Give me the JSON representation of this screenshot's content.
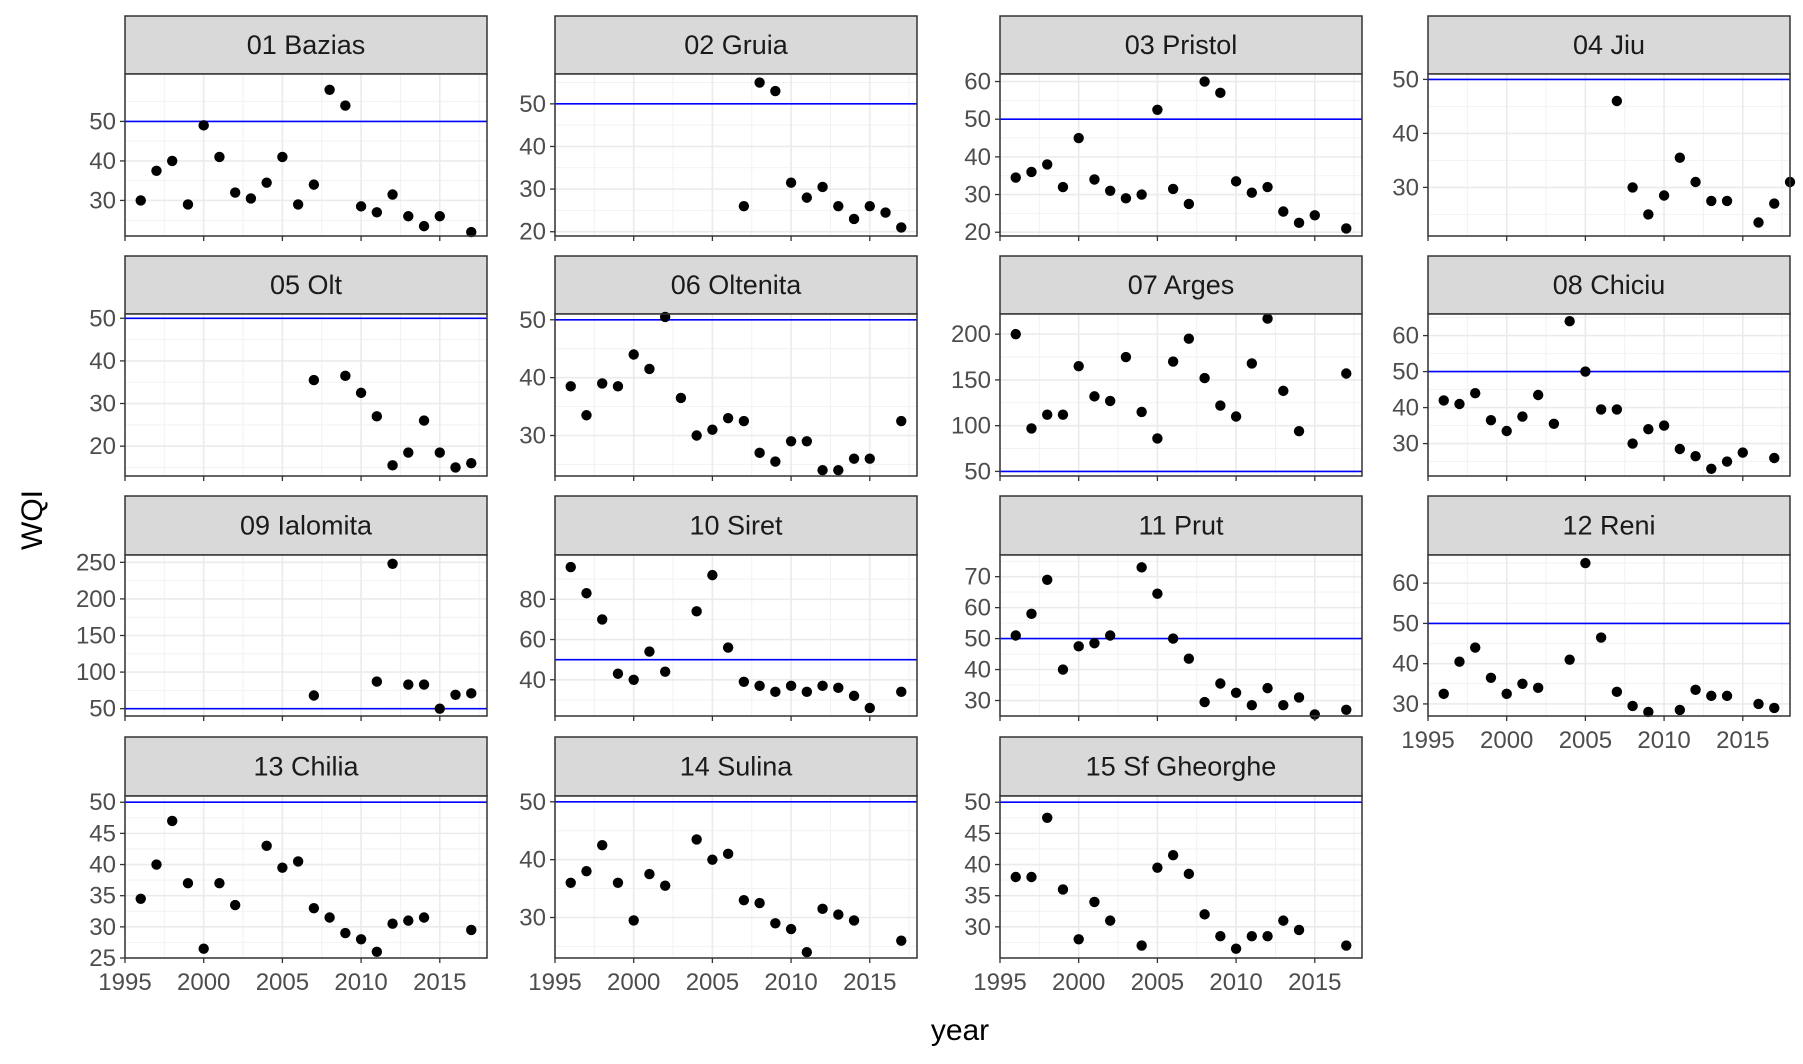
{
  "chart_data": {
    "type": "scatter",
    "layout": "facet_wrap",
    "xlabel": "year",
    "ylabel": "WQI",
    "xlim": [
      1995,
      2018
    ],
    "x_ticks": [
      1995,
      2000,
      2005,
      2010,
      2015
    ],
    "reference_line": {
      "y": 50,
      "color": "#0000ff"
    },
    "colors": {
      "point": "#000000",
      "reference_line": "#0000ff",
      "strip_fill": "#d9d9d9",
      "grid": "#ebebeb",
      "tick_text": "#4d4d4d"
    },
    "panels": [
      {
        "title": "01 Bazias",
        "ylim": [
          21,
          62
        ],
        "y_ticks": [
          30,
          40,
          50
        ],
        "x": [
          1996,
          1997,
          1998,
          1999,
          2000,
          2001,
          2002,
          2003,
          2004,
          2005,
          2006,
          2007,
          2008,
          2009,
          2010,
          2011,
          2012,
          2013,
          2014,
          2015,
          2017
        ],
        "y": [
          30,
          37.5,
          40,
          29,
          49,
          41,
          32,
          30.5,
          34.5,
          41,
          29,
          34,
          58,
          54,
          28.5,
          27,
          31.5,
          26,
          23.5,
          26,
          22
        ]
      },
      {
        "title": "02 Gruia",
        "ylim": [
          19,
          57
        ],
        "y_ticks": [
          20,
          30,
          40,
          50
        ],
        "x": [
          2007,
          2008,
          2009,
          2010,
          2011,
          2012,
          2013,
          2014,
          2015,
          2016,
          2017
        ],
        "y": [
          26,
          55,
          53,
          31.5,
          28,
          30.5,
          26,
          23,
          26,
          24.5,
          21
        ]
      },
      {
        "title": "03 Pristol",
        "ylim": [
          19,
          62
        ],
        "y_ticks": [
          20,
          30,
          40,
          50,
          60
        ],
        "x": [
          1996,
          1997,
          1998,
          1999,
          2000,
          2001,
          2002,
          2003,
          2004,
          2005,
          2006,
          2007,
          2008,
          2009,
          2010,
          2011,
          2012,
          2013,
          2014,
          2015,
          2017
        ],
        "y": [
          34.5,
          36,
          38,
          32,
          45,
          34,
          31,
          29,
          30,
          52.5,
          31.5,
          27.5,
          60,
          57,
          33.5,
          30.5,
          32,
          25.5,
          22.5,
          24.5,
          21
        ]
      },
      {
        "title": "04 Jiu",
        "ylim": [
          21,
          51
        ],
        "y_ticks": [
          30,
          40,
          50
        ],
        "x": [
          2007,
          2008,
          2009,
          2010,
          2011,
          2012,
          2013,
          2014,
          2016,
          2017,
          2018
        ],
        "y": [
          46,
          30,
          25,
          28.5,
          35.5,
          31,
          27.5,
          27.5,
          23.5,
          27,
          31
        ]
      },
      {
        "title": "05 Olt",
        "ylim": [
          13,
          51
        ],
        "y_ticks": [
          20,
          30,
          40,
          50
        ],
        "x": [
          2007,
          2009,
          2010,
          2011,
          2012,
          2013,
          2014,
          2015,
          2016,
          2017
        ],
        "y": [
          35.5,
          36.5,
          32.5,
          27,
          15.5,
          18.5,
          26,
          18.5,
          15,
          16
        ]
      },
      {
        "title": "06 Oltenita",
        "ylim": [
          23,
          51
        ],
        "y_ticks": [
          30,
          40,
          50
        ],
        "x": [
          1996,
          1997,
          1998,
          1999,
          2000,
          2001,
          2002,
          2003,
          2004,
          2005,
          2006,
          2007,
          2008,
          2009,
          2010,
          2011,
          2012,
          2013,
          2014,
          2015,
          2017
        ],
        "y": [
          38.5,
          33.5,
          39,
          38.5,
          44,
          41.5,
          50.5,
          36.5,
          30,
          31,
          33,
          32.5,
          27,
          25.5,
          29,
          29,
          24,
          24,
          26,
          26,
          32.5
        ]
      },
      {
        "title": "07 Arges",
        "ylim": [
          45,
          222
        ],
        "y_ticks": [
          50,
          100,
          150,
          200
        ],
        "x": [
          1996,
          1997,
          1998,
          1999,
          2000,
          2001,
          2002,
          2003,
          2004,
          2005,
          2006,
          2007,
          2008,
          2009,
          2010,
          2011,
          2012,
          2013,
          2014,
          2017
        ],
        "y": [
          200,
          97,
          112,
          112,
          165,
          132,
          127,
          175,
          115,
          86,
          170,
          195,
          152,
          122,
          110,
          168,
          217,
          138,
          94,
          157
        ]
      },
      {
        "title": "08 Chiciu",
        "ylim": [
          21,
          66
        ],
        "y_ticks": [
          30,
          40,
          50,
          60
        ],
        "x": [
          1996,
          1997,
          1998,
          1999,
          2000,
          2001,
          2002,
          2003,
          2004,
          2005,
          2006,
          2007,
          2008,
          2009,
          2010,
          2011,
          2012,
          2013,
          2014,
          2015,
          2017
        ],
        "y": [
          42,
          41,
          44,
          36.5,
          33.5,
          37.5,
          43.5,
          35.5,
          64,
          50,
          39.5,
          39.5,
          30,
          34,
          35,
          28.5,
          26.5,
          23,
          25,
          27.5,
          26
        ]
      },
      {
        "title": "09 Ialomita",
        "ylim": [
          40,
          260
        ],
        "y_ticks": [
          50,
          100,
          150,
          200,
          250
        ],
        "x": [
          2007,
          2011,
          2012,
          2013,
          2014,
          2015,
          2016,
          2017
        ],
        "y": [
          68,
          87,
          248,
          83,
          83,
          50,
          69,
          71
        ]
      },
      {
        "title": "10 Siret",
        "ylim": [
          22,
          102
        ],
        "y_ticks": [
          40,
          60,
          80
        ],
        "x": [
          1996,
          1997,
          1998,
          1999,
          2000,
          2001,
          2002,
          2004,
          2005,
          2006,
          2007,
          2008,
          2009,
          2010,
          2011,
          2012,
          2013,
          2014,
          2015,
          2017
        ],
        "y": [
          96,
          83,
          70,
          43,
          40,
          54,
          44,
          74,
          92,
          56,
          39,
          37,
          34,
          37,
          34,
          37,
          36,
          32,
          26,
          34
        ]
      },
      {
        "title": "11 Prut",
        "ylim": [
          25,
          77
        ],
        "y_ticks": [
          30,
          40,
          50,
          60,
          70
        ],
        "x": [
          1996,
          1997,
          1998,
          1999,
          2000,
          2001,
          2002,
          2004,
          2005,
          2006,
          2007,
          2008,
          2009,
          2010,
          2011,
          2012,
          2013,
          2014,
          2015,
          2017
        ],
        "y": [
          51,
          58,
          69,
          40,
          47.5,
          48.5,
          51,
          73,
          64.5,
          50,
          43.5,
          29.5,
          35.5,
          32.5,
          28.5,
          34,
          28.5,
          31,
          25.5,
          27
        ]
      },
      {
        "title": "12 Reni",
        "ylim": [
          27,
          67
        ],
        "y_ticks": [
          30,
          40,
          50,
          60
        ],
        "x": [
          1996,
          1997,
          1998,
          1999,
          2000,
          2001,
          2002,
          2004,
          2005,
          2006,
          2007,
          2008,
          2009,
          2011,
          2012,
          2013,
          2014,
          2016,
          2017
        ],
        "y": [
          32.5,
          40.5,
          44,
          36.5,
          32.5,
          35,
          34,
          41,
          65,
          46.5,
          33,
          29.5,
          28,
          28.5,
          33.5,
          32,
          32,
          30,
          29
        ]
      },
      {
        "title": "13 Chilia",
        "ylim": [
          25,
          51
        ],
        "y_ticks": [
          25,
          30,
          35,
          40,
          45,
          50
        ],
        "x": [
          1996,
          1997,
          1998,
          1999,
          2000,
          2001,
          2002,
          2004,
          2005,
          2006,
          2007,
          2008,
          2009,
          2010,
          2011,
          2012,
          2013,
          2014,
          2017
        ],
        "y": [
          34.5,
          40,
          47,
          37,
          26.5,
          37,
          33.5,
          43,
          39.5,
          40.5,
          33,
          31.5,
          29,
          28,
          26,
          30.5,
          31,
          31.5,
          29.5
        ]
      },
      {
        "title": "14 Sulina",
        "ylim": [
          23,
          51
        ],
        "y_ticks": [
          30,
          40,
          50
        ],
        "x": [
          1996,
          1997,
          1998,
          1999,
          2000,
          2001,
          2002,
          2004,
          2005,
          2006,
          2007,
          2008,
          2009,
          2010,
          2011,
          2012,
          2013,
          2014,
          2017
        ],
        "y": [
          36,
          38,
          42.5,
          36,
          29.5,
          37.5,
          35.5,
          43.5,
          40,
          41,
          33,
          32.5,
          29,
          28,
          24,
          31.5,
          30.5,
          29.5,
          26
        ]
      },
      {
        "title": "15 Sf Gheorghe",
        "ylim": [
          25,
          51
        ],
        "y_ticks": [
          30,
          35,
          40,
          45,
          50
        ],
        "x": [
          1996,
          1997,
          1998,
          1999,
          2000,
          2001,
          2002,
          2004,
          2005,
          2006,
          2007,
          2008,
          2009,
          2010,
          2011,
          2012,
          2013,
          2014,
          2017
        ],
        "y": [
          38,
          38,
          47.5,
          36,
          28,
          34,
          31,
          27,
          39.5,
          41.5,
          38.5,
          32,
          28.5,
          26.5,
          28.5,
          28.5,
          31,
          29.5,
          27
        ]
      }
    ]
  }
}
